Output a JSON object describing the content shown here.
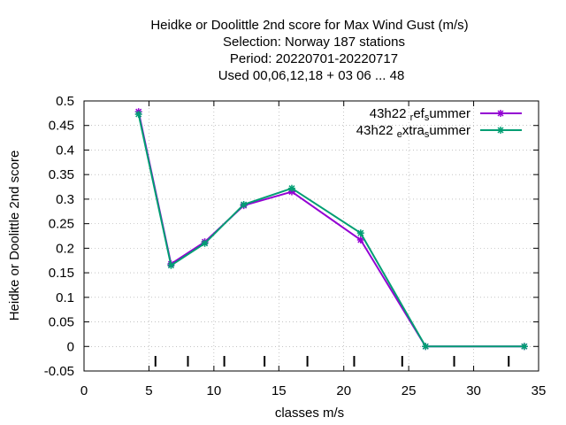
{
  "chart_data": {
    "type": "line",
    "title_lines": [
      "Heidke or Doolittle 2nd score  for Max Wind Gust (m/s)",
      "Selection: Norway    187 stations",
      "Period: 20220701-20220717",
      "Used  00,06,12,18  + 03 06 ... 48"
    ],
    "xlabel": "classes m/s",
    "ylabel": "Heidke or Doolittle 2nd score",
    "xlim": [
      0,
      35
    ],
    "ylim": [
      -0.05,
      0.5
    ],
    "x_ticks": [
      "0",
      "5",
      "10",
      "15",
      "20",
      "25",
      "30",
      "35"
    ],
    "y_ticks": [
      "-0.05",
      "0",
      "0.05",
      "0.1",
      "0.15",
      "0.2",
      "0.25",
      "0.3",
      "0.35",
      "0.4",
      "0.45",
      "0.5"
    ],
    "grid": true,
    "legend_position": "top-right",
    "class_marks": [
      5.5,
      8.0,
      10.8,
      13.9,
      17.2,
      20.8,
      24.5,
      28.5,
      32.7
    ],
    "series": [
      {
        "name_parts": [
          "43h22 ",
          "r",
          "ef",
          "s",
          "ummer"
        ],
        "color": "#9400d3",
        "x": [
          4.2,
          6.7,
          9.3,
          12.3,
          16.0,
          21.3,
          26.3,
          33.9
        ],
        "values": [
          0.478,
          0.168,
          0.213,
          0.287,
          0.315,
          0.217,
          0.0,
          0.0
        ]
      },
      {
        "name_parts": [
          "43h22 ",
          "e",
          "xtra",
          "s",
          "ummer"
        ],
        "color": "#009e73",
        "x": [
          4.2,
          6.7,
          9.3,
          12.3,
          16.0,
          21.3,
          26.3,
          33.9
        ],
        "values": [
          0.473,
          0.165,
          0.21,
          0.289,
          0.322,
          0.231,
          0.0,
          0.0
        ]
      }
    ]
  }
}
